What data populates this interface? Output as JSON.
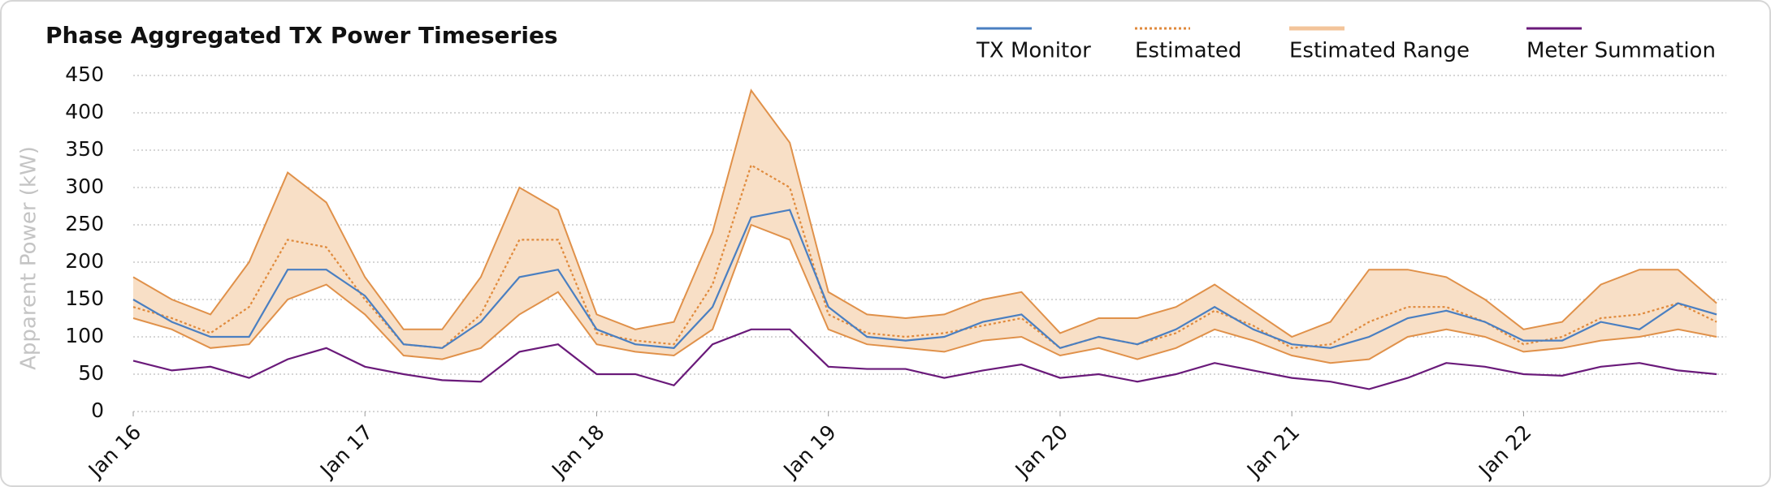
{
  "chart_data": {
    "type": "line",
    "title": "Phase Aggregated TX Power Timeseries",
    "y_label": "Apparent Power (kW)",
    "x": [
      0,
      4,
      8,
      12,
      16,
      20,
      24,
      28,
      32,
      36,
      40,
      44,
      48,
      52,
      56,
      60,
      64,
      68,
      72,
      76,
      80,
      84,
      88,
      92,
      96,
      100,
      104,
      108,
      112,
      116,
      120,
      124,
      128,
      132,
      136,
      140,
      144,
      148,
      152,
      156,
      160,
      164
    ],
    "xlim": [
      0,
      165
    ],
    "xticks": [
      {
        "value": 0,
        "label": "Jan 16"
      },
      {
        "value": 24,
        "label": "Jan 17"
      },
      {
        "value": 48,
        "label": "Jan 18"
      },
      {
        "value": 72,
        "label": "Jan 19"
      },
      {
        "value": 96,
        "label": "Jan 20"
      },
      {
        "value": 120,
        "label": "Jan 21"
      },
      {
        "value": 144,
        "label": "Jan 22"
      }
    ],
    "ylim": [
      0,
      450
    ],
    "yticks": [
      0,
      50,
      100,
      150,
      200,
      250,
      300,
      350,
      400,
      450
    ],
    "grid": true,
    "legend": "top-right",
    "series": [
      {
        "name": "TX Monitor",
        "style": "solid",
        "color": "#4a7fc1",
        "values": [
          150,
          120,
          100,
          100,
          190,
          190,
          155,
          90,
          85,
          120,
          180,
          190,
          110,
          90,
          85,
          140,
          260,
          270,
          140,
          100,
          95,
          100,
          120,
          130,
          85,
          100,
          90,
          110,
          140,
          110,
          90,
          85,
          100,
          125,
          135,
          120,
          95,
          95,
          120,
          110,
          145,
          130
        ]
      },
      {
        "name": "Estimated",
        "style": "dotted",
        "color": "#e08a3c",
        "values": [
          140,
          125,
          105,
          140,
          230,
          220,
          150,
          90,
          85,
          130,
          230,
          230,
          105,
          95,
          90,
          170,
          330,
          300,
          130,
          105,
          100,
          105,
          115,
          125,
          85,
          100,
          90,
          105,
          135,
          115,
          85,
          90,
          120,
          140,
          140,
          120,
          90,
          100,
          125,
          130,
          145,
          120
        ]
      },
      {
        "name": "Estimated Range",
        "style": "band",
        "color": "#e0914a",
        "fill": "#f8dfc6",
        "low": [
          125,
          110,
          85,
          90,
          150,
          170,
          130,
          75,
          70,
          85,
          130,
          160,
          90,
          80,
          75,
          110,
          250,
          230,
          110,
          90,
          85,
          80,
          95,
          100,
          75,
          85,
          70,
          85,
          110,
          95,
          75,
          65,
          70,
          100,
          110,
          100,
          80,
          85,
          95,
          100,
          110,
          100
        ],
        "high": [
          180,
          150,
          130,
          200,
          320,
          280,
          180,
          110,
          110,
          180,
          300,
          270,
          130,
          110,
          120,
          240,
          430,
          360,
          160,
          130,
          125,
          130,
          150,
          160,
          105,
          125,
          125,
          140,
          170,
          135,
          100,
          120,
          190,
          190,
          180,
          150,
          110,
          120,
          170,
          190,
          190,
          145
        ]
      },
      {
        "name": "Meter Summation",
        "style": "solid",
        "color": "#6a1a7a",
        "values": [
          68,
          55,
          60,
          45,
          70,
          85,
          60,
          50,
          42,
          40,
          80,
          90,
          50,
          50,
          35,
          90,
          110,
          110,
          60,
          57,
          57,
          45,
          55,
          63,
          45,
          50,
          40,
          50,
          65,
          55,
          45,
          40,
          30,
          45,
          65,
          60,
          50,
          48,
          60,
          65,
          55,
          50
        ]
      }
    ]
  }
}
